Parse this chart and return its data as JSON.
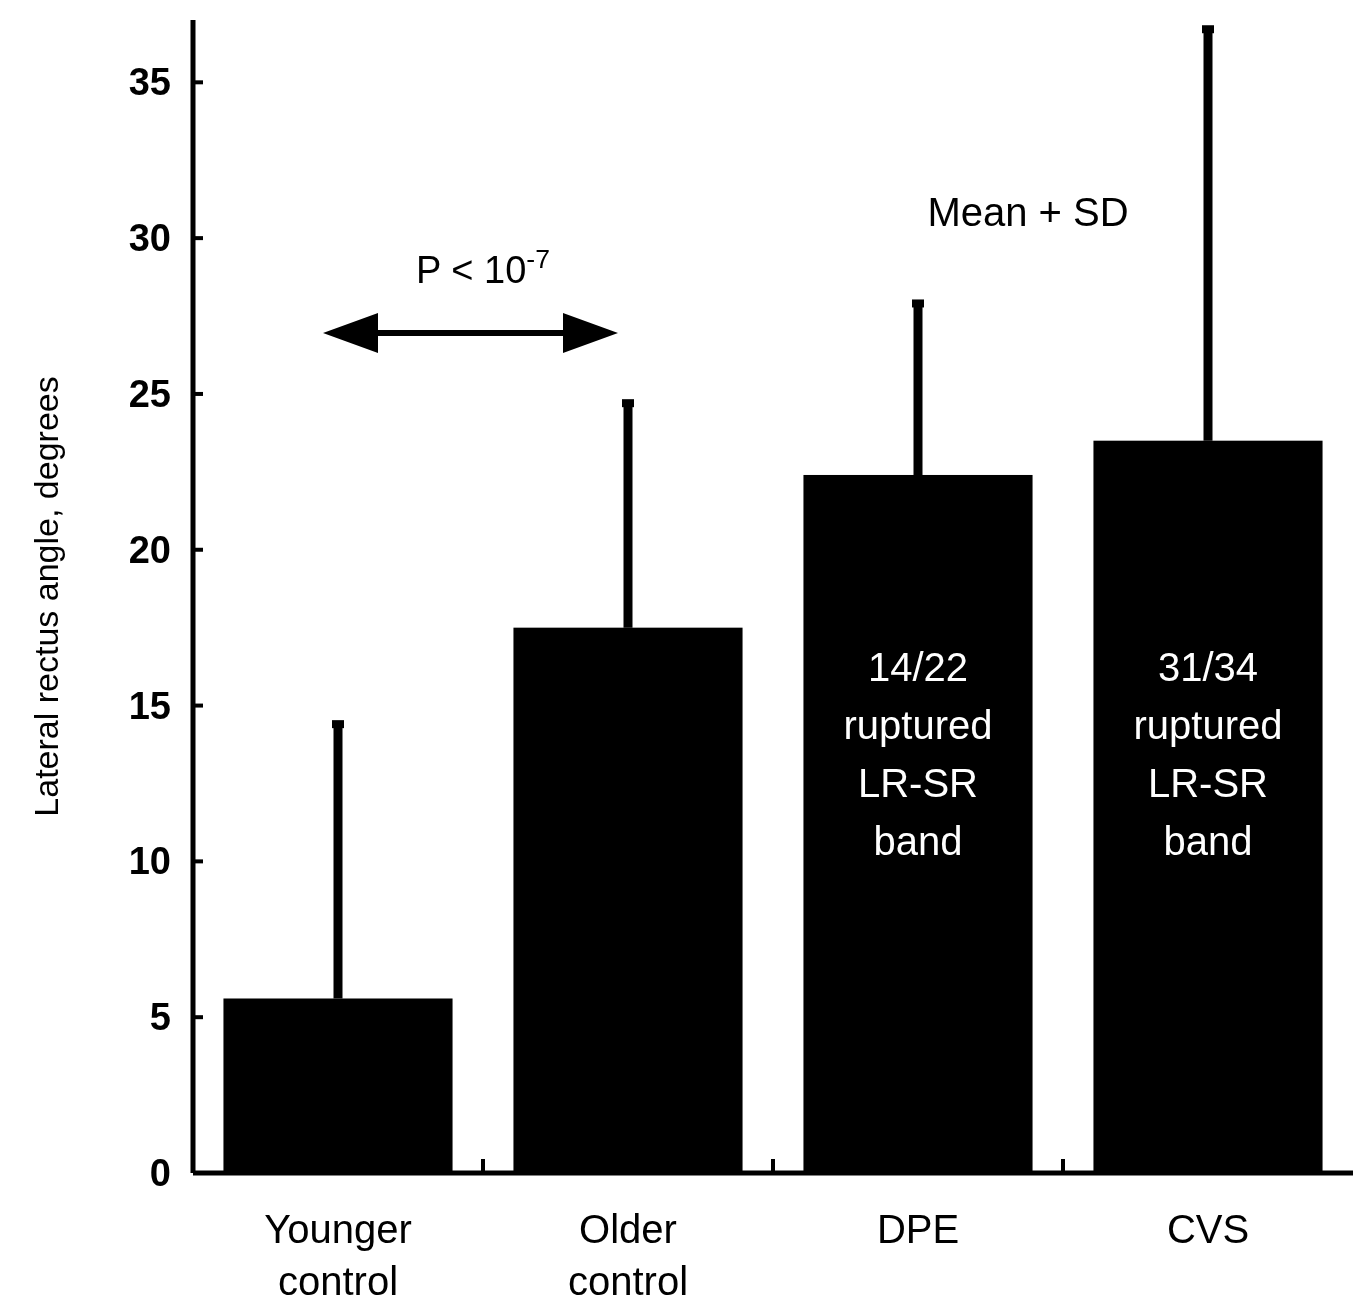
{
  "chart_data": {
    "type": "bar",
    "ylabel": "Lateral rectus angle, degrees",
    "categories": [
      "Younger control",
      "Older control",
      "DPE",
      "CVS"
    ],
    "values": [
      5.6,
      17.5,
      22.4,
      23.5
    ],
    "errors": [
      [
        5.6,
        14.5
      ],
      [
        17.5,
        24.8
      ],
      [
        22.4,
        28.0
      ],
      [
        23.5,
        36.8
      ]
    ],
    "color": "#000000",
    "ylim": [
      0,
      37
    ],
    "yticks": [
      0,
      5,
      10,
      15,
      20,
      25,
      30,
      35
    ],
    "annotations": [
      "P < 10$^{-7}$",
      "Mean + SD",
      "14/22 ruptured LR-SR band",
      "31/34 ruptured LR-SR band"
    ]
  }
}
